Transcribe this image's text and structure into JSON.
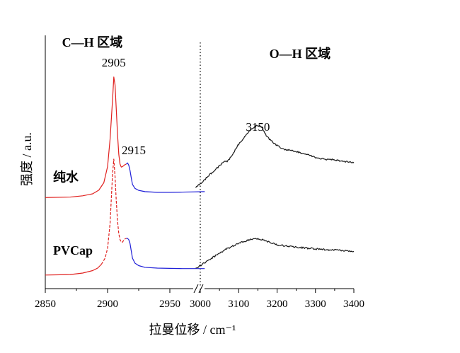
{
  "chart_data": {
    "type": "line",
    "xlabel": "拉曼位移 / cm⁻¹",
    "ylabel": "强度 / a.u.",
    "x_axis": {
      "broken": true,
      "segments": [
        {
          "range": [
            2850,
            2985
          ],
          "ticks": [
            2850,
            2900,
            2950
          ]
        },
        {
          "range": [
            2985,
            3400
          ],
          "ticks": [
            3000,
            3100,
            3200,
            3300,
            3400
          ]
        }
      ]
    },
    "ylim": [
      0,
      1
    ],
    "region_labels": [
      {
        "text": "C—H 区域",
        "x": 2860,
        "y": 0.98
      },
      {
        "text": "O—H 区域",
        "x": 3180,
        "y": 0.92
      }
    ],
    "divider_x": 2985,
    "peak_labels": [
      {
        "text": "2905",
        "x": 2905,
        "y": 0.875
      },
      {
        "text": "2915",
        "x": 2921,
        "y": 0.52
      },
      {
        "text": "3150",
        "x": 3150,
        "y": 0.615
      }
    ],
    "sample_labels": [
      {
        "text": "纯水",
        "x": 2854,
        "y": 0.41
      },
      {
        "text": "PVCap",
        "x": 2854,
        "y": 0.115
      }
    ],
    "series": [
      {
        "sample": "纯水",
        "parts": [
          {
            "color": "#e0201e",
            "style": "solid",
            "points": [
              [
                2850,
                0.345
              ],
              [
                2870,
                0.347
              ],
              [
                2880,
                0.352
              ],
              [
                2888,
                0.36
              ],
              [
                2893,
                0.375
              ],
              [
                2897,
                0.405
              ],
              [
                2900,
                0.47
              ],
              [
                2902,
                0.58
              ],
              [
                2904,
                0.74
              ],
              [
                2905,
                0.832
              ],
              [
                2906,
                0.8
              ],
              [
                2907,
                0.7
              ],
              [
                2908,
                0.6
              ],
              [
                2909,
                0.52
              ],
              [
                2910,
                0.48
              ],
              [
                2911,
                0.468
              ],
              [
                2912,
                0.47
              ],
              [
                2914,
                0.478
              ],
              [
                2915,
                0.48
              ]
            ]
          },
          {
            "color": "#2020d8",
            "style": "solid",
            "points": [
              [
                2915,
                0.48
              ],
              [
                2916,
                0.485
              ],
              [
                2917,
                0.476
              ],
              [
                2918,
                0.455
              ],
              [
                2919,
                0.425
              ],
              [
                2920,
                0.398
              ],
              [
                2922,
                0.382
              ],
              [
                2925,
                0.374
              ],
              [
                2930,
                0.369
              ],
              [
                2940,
                0.366
              ],
              [
                2950,
                0.366
              ],
              [
                2960,
                0.367
              ],
              [
                2970,
                0.368
              ],
              [
                2978,
                0.369
              ]
            ]
          },
          {
            "color": "#1a1a1a",
            "style": "solid",
            "points": [
              [
                2988,
                0.386
              ],
              [
                3000,
                0.4
              ],
              [
                3020,
                0.43
              ],
              [
                3040,
                0.46
              ],
              [
                3050,
                0.472
              ],
              [
                3060,
                0.49
              ],
              [
                3070,
                0.49
              ],
              [
                3080,
                0.51
              ],
              [
                3100,
                0.56
              ],
              [
                3120,
                0.6
              ],
              [
                3140,
                0.63
              ],
              [
                3150,
                0.637
              ],
              [
                3160,
                0.63
              ],
              [
                3170,
                0.6
              ],
              [
                3180,
                0.58
              ],
              [
                3200,
                0.555
              ],
              [
                3220,
                0.54
              ],
              [
                3250,
                0.53
              ],
              [
                3280,
                0.52
              ],
              [
                3300,
                0.508
              ],
              [
                3320,
                0.5
              ],
              [
                3350,
                0.497
              ],
              [
                3380,
                0.49
              ],
              [
                3400,
                0.485
              ]
            ]
          }
        ]
      },
      {
        "sample": "PVCap",
        "parts": [
          {
            "color": "#e0201e",
            "style": "solid",
            "points": [
              [
                2850,
                0.032
              ],
              [
                2870,
                0.034
              ],
              [
                2880,
                0.04
              ],
              [
                2888,
                0.05
              ],
              [
                2892,
                0.06
              ],
              [
                2895,
                0.075
              ]
            ]
          },
          {
            "color": "#e0201e",
            "style": "dashed",
            "points": [
              [
                2895,
                0.075
              ],
              [
                2898,
                0.1
              ],
              [
                2900,
                0.14
              ],
              [
                2902,
                0.24
              ],
              [
                2903,
                0.34
              ],
              [
                2904,
                0.44
              ],
              [
                2905,
                0.5
              ],
              [
                2906,
                0.43
              ],
              [
                2907,
                0.33
              ],
              [
                2908,
                0.25
              ],
              [
                2909,
                0.2
              ],
              [
                2910,
                0.175
              ],
              [
                2911,
                0.165
              ],
              [
                2912,
                0.165
              ],
              [
                2913,
                0.173
              ],
              [
                2914,
                0.178
              ],
              [
                2915,
                0.18
              ]
            ]
          },
          {
            "color": "#2020d8",
            "style": "solid",
            "points": [
              [
                2915,
                0.18
              ],
              [
                2916,
                0.18
              ],
              [
                2917,
                0.175
              ],
              [
                2918,
                0.16
              ],
              [
                2919,
                0.13
              ],
              [
                2920,
                0.1
              ],
              [
                2922,
                0.08
              ],
              [
                2925,
                0.07
              ],
              [
                2930,
                0.063
              ],
              [
                2940,
                0.06
              ],
              [
                2950,
                0.059
              ],
              [
                2960,
                0.058
              ],
              [
                2970,
                0.058
              ],
              [
                2978,
                0.058
              ]
            ]
          },
          {
            "color": "#1a1a1a",
            "style": "solid",
            "points": [
              [
                2988,
                0.06
              ],
              [
                3000,
                0.07
              ],
              [
                3020,
                0.09
              ],
              [
                3040,
                0.11
              ],
              [
                3050,
                0.12
              ],
              [
                3060,
                0.13
              ],
              [
                3070,
                0.14
              ],
              [
                3080,
                0.145
              ],
              [
                3100,
                0.16
              ],
              [
                3120,
                0.17
              ],
              [
                3140,
                0.178
              ],
              [
                3150,
                0.18
              ],
              [
                3160,
                0.175
              ],
              [
                3180,
                0.165
              ],
              [
                3200,
                0.155
              ],
              [
                3220,
                0.15
              ],
              [
                3250,
                0.145
              ],
              [
                3280,
                0.14
              ],
              [
                3300,
                0.138
              ],
              [
                3320,
                0.135
              ],
              [
                3350,
                0.133
              ],
              [
                3380,
                0.13
              ],
              [
                3400,
                0.128
              ]
            ]
          }
        ]
      }
    ]
  }
}
